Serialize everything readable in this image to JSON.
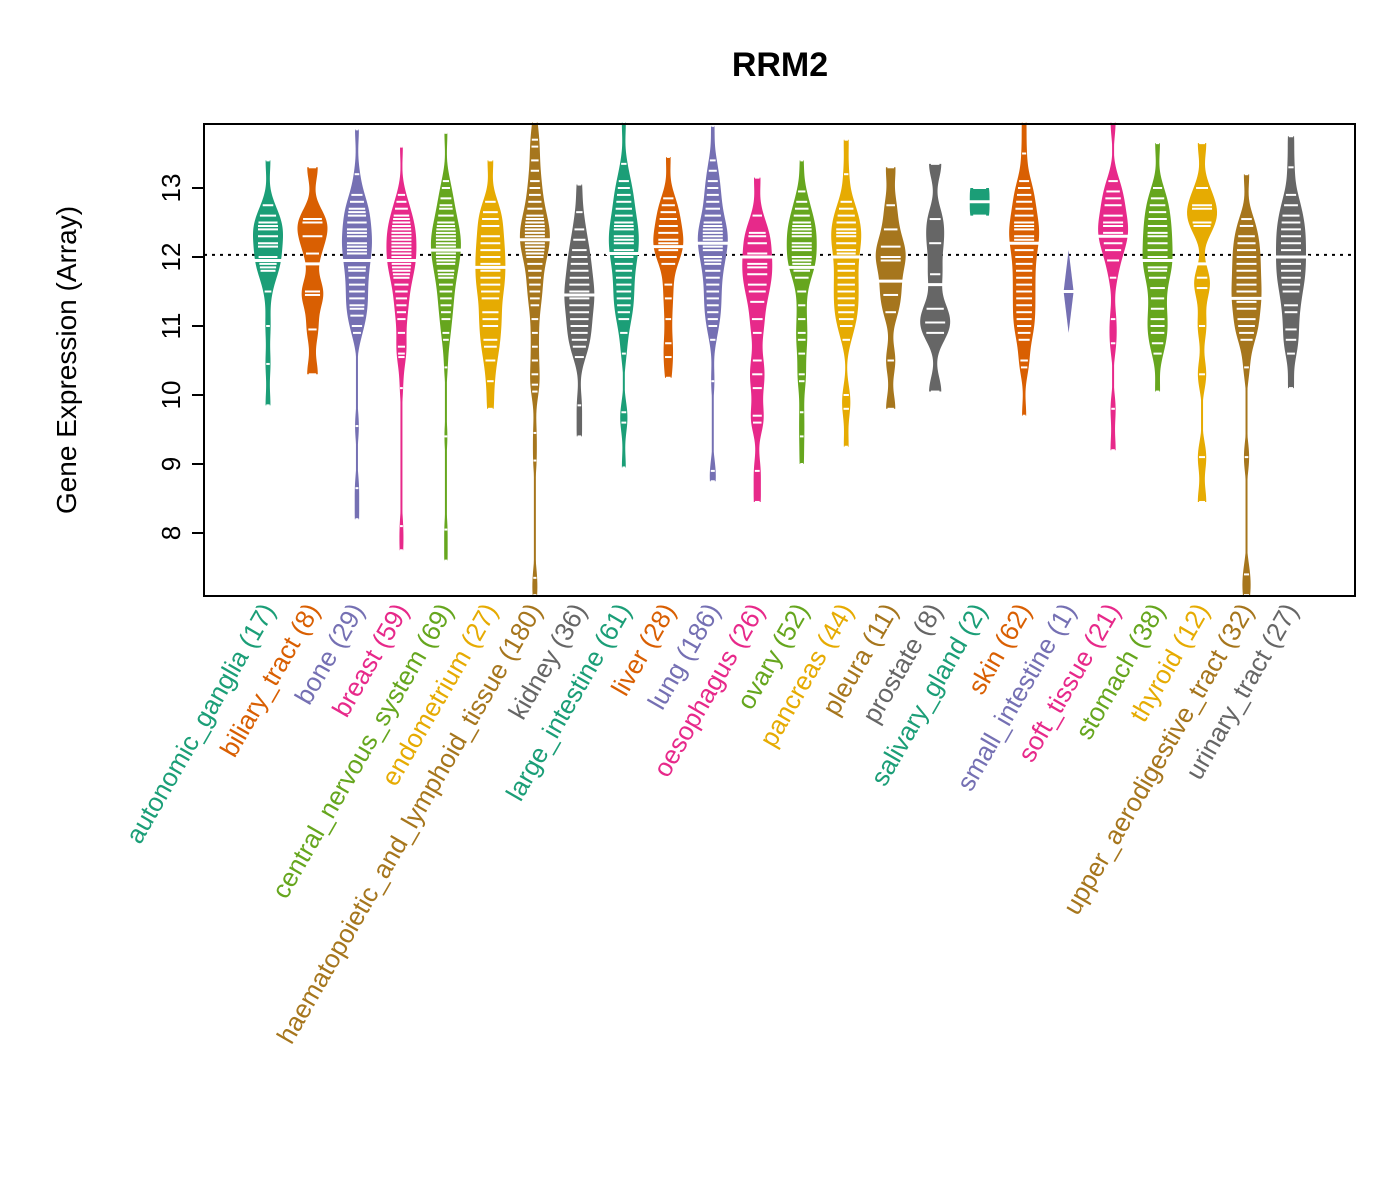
{
  "chart_data": {
    "type": "violin",
    "title": "RRM2",
    "xlabel": "",
    "ylabel": "Gene Expression (Array)",
    "ylim": [
      7.1,
      13.95
    ],
    "yticks": [
      8,
      9,
      10,
      11,
      12,
      13
    ],
    "reference_line": 12.03,
    "grid": false,
    "palette": [
      "#1B9E77",
      "#D95F02",
      "#7570B3",
      "#E7298A",
      "#66A61E",
      "#E6AB02",
      "#A6761D",
      "#666666"
    ],
    "categories": [
      {
        "name": "autonomic_ganglia",
        "n": 17,
        "median": 11.95,
        "values": [
          12.75,
          12.6,
          12.5,
          12.45,
          12.4,
          12.3,
          12.2,
          12.15,
          12.0,
          11.9,
          11.85,
          11.8,
          11.5,
          11.0,
          10.45,
          9.85,
          13.4
        ]
      },
      {
        "name": "biliary_tract",
        "n": 8,
        "median": 11.9,
        "values": [
          13.3,
          12.55,
          12.5,
          12.3,
          12.05,
          11.5,
          11.45,
          10.95,
          10.3
        ]
      },
      {
        "name": "bone",
        "n": 29,
        "median": 11.95,
        "values": [
          13.85,
          13.2,
          12.9,
          12.8,
          12.7,
          12.65,
          12.6,
          12.5,
          12.4,
          12.35,
          12.3,
          12.2,
          12.15,
          12.1,
          12.05,
          11.95,
          11.85,
          11.8,
          11.7,
          11.6,
          11.5,
          11.4,
          11.3,
          11.25,
          11.15,
          11.0,
          10.9,
          9.55,
          8.65,
          8.2
        ]
      },
      {
        "name": "breast",
        "n": 59,
        "median": 11.95,
        "values": [
          13.6,
          12.9,
          12.8,
          12.7,
          12.6,
          12.55,
          12.5,
          12.45,
          12.4,
          12.35,
          12.3,
          12.25,
          12.2,
          12.15,
          12.1,
          12.05,
          12.0,
          11.95,
          11.9,
          11.85,
          11.8,
          11.75,
          11.7,
          11.6,
          11.5,
          11.4,
          11.3,
          11.2,
          11.1,
          10.9,
          10.7,
          10.6,
          10.55,
          10.1,
          8.1,
          7.75
        ]
      },
      {
        "name": "central_nervous_system",
        "n": 69,
        "median": 12.1,
        "values": [
          13.8,
          13.1,
          13.0,
          12.85,
          12.75,
          12.7,
          12.6,
          12.5,
          12.45,
          12.4,
          12.35,
          12.3,
          12.25,
          12.2,
          12.15,
          12.1,
          12.05,
          12.0,
          11.95,
          11.9,
          11.8,
          11.75,
          11.7,
          11.6,
          11.5,
          11.4,
          11.3,
          11.2,
          11.1,
          10.9,
          10.8,
          10.4,
          9.4,
          8.05,
          7.6
        ]
      },
      {
        "name": "endometrium",
        "n": 27,
        "median": 11.85,
        "values": [
          13.4,
          12.8,
          12.65,
          12.55,
          12.45,
          12.3,
          12.2,
          12.1,
          12.0,
          11.9,
          11.8,
          11.7,
          11.6,
          11.5,
          11.4,
          11.2,
          11.1,
          11.0,
          10.8,
          10.7,
          10.5,
          10.2,
          9.8
        ]
      },
      {
        "name": "haematopoietic_and_lymphoid_tissue",
        "n": 180,
        "median": 12.25,
        "values": [
          13.95,
          13.7,
          13.6,
          13.4,
          13.25,
          13.1,
          13.0,
          12.9,
          12.8,
          12.7,
          12.6,
          12.55,
          12.5,
          12.45,
          12.4,
          12.35,
          12.3,
          12.25,
          12.2,
          12.15,
          12.1,
          12.05,
          12.0,
          11.9,
          11.8,
          11.7,
          11.6,
          11.5,
          11.4,
          11.3,
          11.1,
          10.9,
          10.7,
          10.5,
          10.3,
          10.15,
          10.05,
          9.45,
          9.05,
          7.35,
          7.1
        ]
      },
      {
        "name": "kidney",
        "n": 36,
        "median": 11.45,
        "values": [
          13.05,
          12.65,
          12.4,
          12.25,
          12.1,
          12.0,
          11.9,
          11.8,
          11.7,
          11.6,
          11.5,
          11.45,
          11.4,
          11.3,
          11.2,
          11.1,
          11.0,
          10.9,
          10.8,
          10.7,
          10.55,
          9.85,
          9.4
        ]
      },
      {
        "name": "large_intestine",
        "n": 61,
        "median": 12.05,
        "values": [
          13.95,
          13.35,
          13.1,
          13.0,
          12.9,
          12.8,
          12.7,
          12.6,
          12.5,
          12.45,
          12.4,
          12.3,
          12.25,
          12.2,
          12.1,
          12.05,
          12.0,
          11.9,
          11.8,
          11.7,
          11.6,
          11.5,
          11.4,
          11.3,
          11.2,
          11.1,
          10.9,
          10.6,
          9.75,
          9.6,
          8.95
        ]
      },
      {
        "name": "liver",
        "n": 28,
        "median": 12.15,
        "values": [
          13.45,
          12.85,
          12.75,
          12.65,
          12.55,
          12.45,
          12.35,
          12.25,
          12.2,
          12.15,
          12.1,
          12.0,
          11.9,
          11.6,
          11.4,
          11.1,
          10.75,
          10.55,
          10.25
        ]
      },
      {
        "name": "lung",
        "n": 186,
        "median": 12.2,
        "values": [
          13.9,
          13.4,
          13.25,
          13.1,
          13.0,
          12.9,
          12.8,
          12.7,
          12.6,
          12.5,
          12.45,
          12.4,
          12.35,
          12.3,
          12.25,
          12.2,
          12.15,
          12.1,
          12.0,
          11.95,
          11.9,
          11.8,
          11.7,
          11.6,
          11.5,
          11.4,
          11.3,
          11.2,
          11.1,
          11.0,
          10.8,
          10.2,
          8.9,
          8.75
        ]
      },
      {
        "name": "oesophagus",
        "n": 26,
        "median": 12.0,
        "values": [
          13.15,
          12.6,
          12.35,
          12.3,
          12.2,
          12.05,
          11.9,
          11.85,
          11.75,
          11.6,
          11.5,
          11.35,
          11.1,
          10.9,
          10.5,
          10.3,
          10.1,
          9.7,
          9.6,
          8.9,
          8.45
        ]
      },
      {
        "name": "ovary",
        "n": 52,
        "median": 11.85,
        "values": [
          13.4,
          12.95,
          12.8,
          12.7,
          12.6,
          12.5,
          12.45,
          12.4,
          12.35,
          12.3,
          12.2,
          12.15,
          12.1,
          12.0,
          11.95,
          11.9,
          11.85,
          11.8,
          11.7,
          11.5,
          11.3,
          11.1,
          10.9,
          10.8,
          10.6,
          10.3,
          10.2,
          9.75,
          9.4,
          9.0
        ]
      },
      {
        "name": "pancreas",
        "n": 44,
        "median": 12.0,
        "values": [
          13.7,
          13.2,
          12.8,
          12.7,
          12.6,
          12.5,
          12.4,
          12.35,
          12.3,
          12.2,
          12.1,
          12.05,
          11.9,
          11.8,
          11.7,
          11.6,
          11.5,
          11.4,
          11.3,
          11.2,
          11.1,
          11.0,
          10.8,
          10.0,
          9.8,
          9.25
        ]
      },
      {
        "name": "pleura",
        "n": 11,
        "median": 11.65,
        "values": [
          13.3,
          12.75,
          12.4,
          12.15,
          12.0,
          11.95,
          11.65,
          11.45,
          11.2,
          10.5,
          9.8
        ]
      },
      {
        "name": "prostate",
        "n": 8,
        "median": 11.6,
        "values": [
          13.35,
          12.55,
          12.2,
          11.75,
          11.25,
          11.05,
          10.9,
          10.05
        ]
      },
      {
        "name": "salivary_gland",
        "n": 2,
        "median": 12.8,
        "values": [
          13.0,
          12.6
        ]
      },
      {
        "name": "skin",
        "n": 62,
        "median": 12.2,
        "values": [
          13.95,
          13.5,
          13.1,
          13.0,
          12.9,
          12.8,
          12.7,
          12.6,
          12.5,
          12.45,
          12.4,
          12.3,
          12.25,
          12.2,
          12.1,
          12.0,
          11.9,
          11.8,
          11.7,
          11.6,
          11.5,
          11.4,
          11.3,
          11.2,
          11.1,
          11.0,
          10.9,
          10.8,
          10.5,
          10.4,
          9.7
        ]
      },
      {
        "name": "small_intestine",
        "n": 1,
        "median": 11.5,
        "values": [
          11.5
        ]
      },
      {
        "name": "soft_tissue",
        "n": 21,
        "median": 12.3,
        "values": [
          13.95,
          13.1,
          12.95,
          12.85,
          12.75,
          12.6,
          12.5,
          12.45,
          12.35,
          12.3,
          12.2,
          12.1,
          11.95,
          11.7,
          11.1,
          10.75,
          9.8,
          9.2
        ]
      },
      {
        "name": "stomach",
        "n": 38,
        "median": 11.95,
        "values": [
          13.65,
          13.0,
          12.85,
          12.75,
          12.65,
          12.55,
          12.45,
          12.35,
          12.3,
          12.2,
          12.1,
          12.0,
          11.95,
          11.85,
          11.8,
          11.7,
          11.55,
          11.4,
          11.25,
          11.1,
          11.0,
          10.9,
          10.75,
          10.6,
          10.05
        ]
      },
      {
        "name": "thyroid",
        "n": 12,
        "median": 11.9,
        "values": [
          13.65,
          13.0,
          12.75,
          12.7,
          12.5,
          12.45,
          11.7,
          11.55,
          11.0,
          10.3,
          9.1,
          8.45
        ]
      },
      {
        "name": "upper_aerodigestive_tract",
        "n": 32,
        "median": 11.4,
        "values": [
          13.2,
          12.55,
          12.45,
          12.3,
          12.2,
          12.1,
          12.0,
          11.9,
          11.8,
          11.7,
          11.6,
          11.5,
          11.4,
          11.35,
          11.25,
          11.1,
          11.0,
          10.9,
          10.8,
          10.4,
          9.1,
          7.4,
          7.1
        ]
      },
      {
        "name": "urinary_tract",
        "n": 27,
        "median": 12.0,
        "values": [
          13.75,
          13.3,
          12.9,
          12.75,
          12.6,
          12.5,
          12.4,
          12.3,
          12.2,
          12.1,
          12.0,
          11.9,
          11.8,
          11.7,
          11.6,
          11.5,
          11.3,
          11.2,
          10.95,
          10.8,
          10.6,
          10.1
        ]
      }
    ]
  }
}
